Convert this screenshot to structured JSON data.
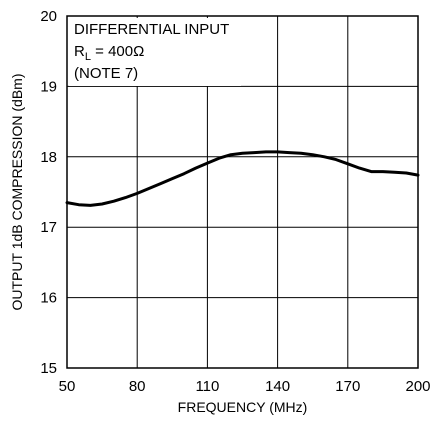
{
  "chart_data": {
    "type": "line",
    "title": "",
    "xlabel": "FREQUENCY (MHz)",
    "ylabel": "OUTPUT 1dB COMPRESSION (dBm)",
    "xlim": [
      50,
      200
    ],
    "ylim": [
      15,
      20
    ],
    "xticks": [
      50,
      80,
      110,
      140,
      170,
      200
    ],
    "yticks": [
      15,
      16,
      17,
      18,
      19,
      20
    ],
    "grid": true,
    "annotation": {
      "line1": "DIFFERENTIAL INPUT",
      "line2_main": "R",
      "line2_sub": "L",
      "line2_rest": " = 400Ω",
      "line3": "(NOTE 7)"
    },
    "series": [
      {
        "x": [
          50,
          55,
          60,
          65,
          70,
          75,
          80,
          85,
          90,
          95,
          100,
          105,
          110,
          115,
          120,
          125,
          130,
          135,
          140,
          145,
          150,
          155,
          160,
          165,
          170,
          175,
          180,
          185,
          190,
          195,
          200
        ],
        "y": [
          17.35,
          17.32,
          17.31,
          17.33,
          17.37,
          17.42,
          17.48,
          17.55,
          17.62,
          17.69,
          17.76,
          17.84,
          17.91,
          17.98,
          18.03,
          18.05,
          18.06,
          18.07,
          18.07,
          18.06,
          18.05,
          18.03,
          18.0,
          17.96,
          17.9,
          17.84,
          17.79,
          17.79,
          17.78,
          17.77,
          17.74
        ]
      }
    ]
  }
}
